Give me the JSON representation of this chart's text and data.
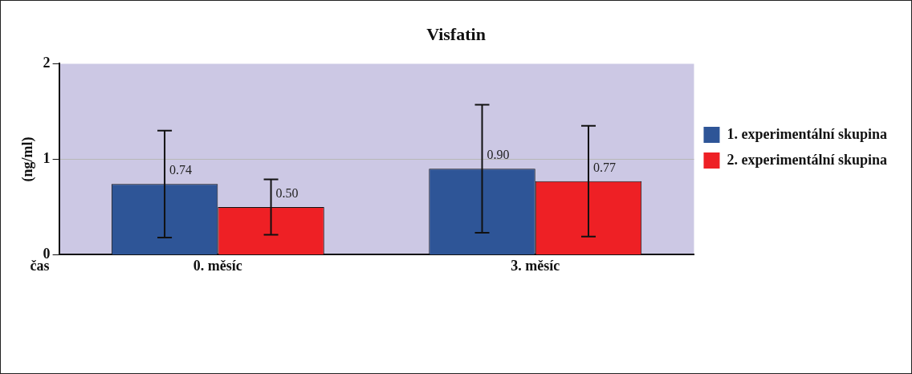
{
  "chart_data": {
    "type": "bar",
    "title": "Visfatin",
    "ylabel": "(ng/ml)",
    "xlabel": "čas",
    "categories": [
      "0. měsíc",
      "3. měsíc"
    ],
    "series": [
      {
        "name": "1. experimentální skupina",
        "color": "#2e5597",
        "values": [
          0.74,
          0.9
        ],
        "value_labels": [
          "0.74",
          "0.90"
        ],
        "errors": [
          0.56,
          0.67
        ]
      },
      {
        "name": "2. experimentální skupina",
        "color": "#ee2025",
        "values": [
          0.5,
          0.77
        ],
        "value_labels": [
          "0.50",
          "0.77"
        ],
        "errors": [
          0.29,
          0.58
        ]
      }
    ],
    "ylim": [
      0,
      2
    ],
    "yticks": [
      0,
      1,
      2
    ],
    "grid": "y",
    "legend": "right"
  }
}
